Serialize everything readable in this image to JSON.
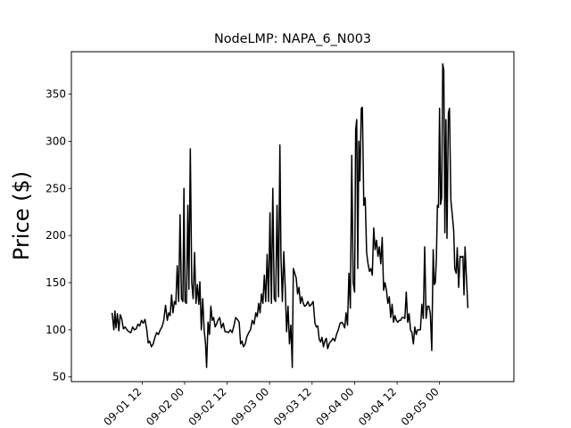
{
  "chart_data": {
    "type": "line",
    "title": "NodeLMP: NAPA_6_N003",
    "xlabel": "",
    "ylabel": "Price ($)",
    "x_unit": "hours since 09-01 00",
    "xlim": [
      -8.0,
      117.0
    ],
    "ylim": [
      45,
      395
    ],
    "x_ticks": [
      {
        "value": 12,
        "label": "09-01 12"
      },
      {
        "value": 24,
        "label": "09-02 00"
      },
      {
        "value": 36,
        "label": "09-02 12"
      },
      {
        "value": 48,
        "label": "09-03 00"
      },
      {
        "value": 60,
        "label": "09-03 12"
      },
      {
        "value": 72,
        "label": "09-04 00"
      },
      {
        "value": 84,
        "label": "09-04 12"
      },
      {
        "value": 96,
        "label": "09-05 00"
      }
    ],
    "y_ticks": [
      {
        "value": 50,
        "label": "50"
      },
      {
        "value": 100,
        "label": "100"
      },
      {
        "value": 150,
        "label": "150"
      },
      {
        "value": 200,
        "label": "200"
      },
      {
        "value": 250,
        "label": "250"
      },
      {
        "value": 300,
        "label": "300"
      },
      {
        "value": 350,
        "label": "350"
      }
    ],
    "grid": false,
    "legend": "none",
    "colors": {
      "line": "#000000",
      "axes": "#000000",
      "background": "#ffffff"
    },
    "series": [
      {
        "name": "",
        "points": [
          [
            3.5,
            118
          ],
          [
            4.0,
            100
          ],
          [
            4.3,
            120
          ],
          [
            4.6,
            102
          ],
          [
            5.0,
            117
          ],
          [
            5.4,
            99
          ],
          [
            5.8,
            116
          ],
          [
            6.2,
            112
          ],
          [
            6.7,
            101
          ],
          [
            7.2,
            103
          ],
          [
            7.7,
            100
          ],
          [
            8.2,
            98
          ],
          [
            8.8,
            97
          ],
          [
            9.3,
            103
          ],
          [
            9.8,
            100
          ],
          [
            10.3,
            101
          ],
          [
            10.8,
            106
          ],
          [
            11.3,
            104
          ],
          [
            11.8,
            110
          ],
          [
            12.3,
            107
          ],
          [
            12.8,
            111
          ],
          [
            13.3,
            100
          ],
          [
            13.7,
            86
          ],
          [
            14.1,
            88
          ],
          [
            14.6,
            82
          ],
          [
            15.1,
            85
          ],
          [
            15.6,
            92
          ],
          [
            16.1,
            97
          ],
          [
            16.6,
            95
          ],
          [
            17.1,
            100
          ],
          [
            17.6,
            103
          ],
          [
            18.1,
            110
          ],
          [
            18.6,
            126
          ],
          [
            19.1,
            110
          ],
          [
            19.5,
            118
          ],
          [
            19.9,
            115
          ],
          [
            20.3,
            137
          ],
          [
            20.7,
            118
          ],
          [
            21.1,
            130
          ],
          [
            21.5,
            127
          ],
          [
            21.9,
            168
          ],
          [
            22.3,
            130
          ],
          [
            22.7,
            222
          ],
          [
            23.1,
            133
          ],
          [
            23.5,
            130
          ],
          [
            23.8,
            250
          ],
          [
            24.1,
            130
          ],
          [
            24.5,
            128
          ],
          [
            24.9,
            232
          ],
          [
            25.2,
            143
          ],
          [
            25.6,
            292
          ],
          [
            26.0,
            150
          ],
          [
            26.4,
            133
          ],
          [
            26.8,
            182
          ],
          [
            27.2,
            128
          ],
          [
            27.6,
            148
          ],
          [
            28.0,
            127
          ],
          [
            28.3,
            151
          ],
          [
            28.7,
            100
          ],
          [
            29.1,
            133
          ],
          [
            29.5,
            100
          ],
          [
            29.9,
            85
          ],
          [
            30.2,
            60
          ],
          [
            30.6,
            108
          ],
          [
            31.0,
            95
          ],
          [
            31.4,
            125
          ],
          [
            31.8,
            110
          ],
          [
            32.2,
            113
          ],
          [
            32.6,
            103
          ],
          [
            33.0,
            106
          ],
          [
            33.4,
            110
          ],
          [
            33.9,
            113
          ],
          [
            34.4,
            102
          ],
          [
            34.9,
            107
          ],
          [
            35.4,
            98
          ],
          [
            35.9,
            98
          ],
          [
            36.4,
            97
          ],
          [
            36.9,
            100
          ],
          [
            37.4,
            97
          ],
          [
            37.9,
            104
          ],
          [
            38.4,
            113
          ],
          [
            38.9,
            111
          ],
          [
            39.4,
            108
          ],
          [
            39.8,
            85
          ],
          [
            40.2,
            88
          ],
          [
            40.6,
            82
          ],
          [
            41.1,
            85
          ],
          [
            41.6,
            93
          ],
          [
            42.1,
            97
          ],
          [
            42.6,
            100
          ],
          [
            43.1,
            110
          ],
          [
            43.6,
            106
          ],
          [
            44.1,
            118
          ],
          [
            44.5,
            114
          ],
          [
            44.9,
            128
          ],
          [
            45.3,
            118
          ],
          [
            45.7,
            138
          ],
          [
            46.1,
            128
          ],
          [
            46.5,
            158
          ],
          [
            46.9,
            130
          ],
          [
            47.3,
            180
          ],
          [
            47.7,
            130
          ],
          [
            48.1,
            224
          ],
          [
            48.5,
            128
          ],
          [
            48.9,
            250
          ],
          [
            49.3,
            133
          ],
          [
            49.7,
            130
          ],
          [
            50.1,
            232
          ],
          [
            50.5,
            135
          ],
          [
            50.9,
            296
          ],
          [
            51.2,
            178
          ],
          [
            51.6,
            130
          ],
          [
            52.0,
            183
          ],
          [
            52.4,
            145
          ],
          [
            52.8,
            98
          ],
          [
            53.2,
            125
          ],
          [
            53.6,
            85
          ],
          [
            54.0,
            105
          ],
          [
            54.4,
            60
          ],
          [
            54.7,
            165
          ],
          [
            55.1,
            160
          ],
          [
            55.5,
            155
          ],
          [
            55.9,
            138
          ],
          [
            56.3,
            145
          ],
          [
            56.7,
            128
          ],
          [
            57.1,
            135
          ],
          [
            57.5,
            128
          ],
          [
            57.9,
            125
          ],
          [
            58.3,
            126
          ],
          [
            58.8,
            130
          ],
          [
            59.3,
            125
          ],
          [
            59.8,
            127
          ],
          [
            60.3,
            130
          ],
          [
            60.8,
            107
          ],
          [
            61.2,
            103
          ],
          [
            61.6,
            104
          ],
          [
            62.0,
            90
          ],
          [
            62.4,
            87
          ],
          [
            62.8,
            92
          ],
          [
            63.2,
            82
          ],
          [
            63.6,
            88
          ],
          [
            64.0,
            91
          ],
          [
            64.4,
            80
          ],
          [
            64.9,
            86
          ],
          [
            65.4,
            88
          ],
          [
            65.9,
            91
          ],
          [
            66.4,
            88
          ],
          [
            66.9,
            95
          ],
          [
            67.4,
            100
          ],
          [
            67.9,
            107
          ],
          [
            68.4,
            108
          ],
          [
            68.8,
            106
          ],
          [
            69.2,
            102
          ],
          [
            69.6,
            118
          ],
          [
            70.0,
            105
          ],
          [
            70.4,
            160
          ],
          [
            70.8,
            123
          ],
          [
            71.2,
            285
          ],
          [
            71.6,
            150
          ],
          [
            72.0,
            140
          ],
          [
            72.3,
            312
          ],
          [
            72.6,
            323
          ],
          [
            72.9,
            165
          ],
          [
            73.2,
            300
          ],
          [
            73.5,
            258
          ],
          [
            73.9,
            335
          ],
          [
            74.2,
            336
          ],
          [
            74.6,
            232
          ],
          [
            75.0,
            240
          ],
          [
            75.4,
            182
          ],
          [
            75.8,
            170
          ],
          [
            76.2,
            162
          ],
          [
            76.6,
            165
          ],
          [
            77.0,
            158
          ],
          [
            77.4,
            208
          ],
          [
            77.8,
            185
          ],
          [
            78.2,
            195
          ],
          [
            78.6,
            178
          ],
          [
            79.0,
            188
          ],
          [
            79.4,
            170
          ],
          [
            79.8,
            198
          ],
          [
            80.2,
            142
          ],
          [
            80.6,
            150
          ],
          [
            81.0,
            142
          ],
          [
            81.4,
            128
          ],
          [
            81.8,
            135
          ],
          [
            82.2,
            113
          ],
          [
            82.6,
            127
          ],
          [
            83.0,
            108
          ],
          [
            83.4,
            115
          ],
          [
            83.8,
            110
          ],
          [
            84.2,
            108
          ],
          [
            84.6,
            110
          ],
          [
            85.0,
            110
          ],
          [
            85.4,
            113
          ],
          [
            85.8,
            113
          ],
          [
            86.2,
            112
          ],
          [
            86.6,
            140
          ],
          [
            87.0,
            108
          ],
          [
            87.4,
            117
          ],
          [
            87.8,
            100
          ],
          [
            88.2,
            97
          ],
          [
            88.6,
            85
          ],
          [
            89.0,
            103
          ],
          [
            89.4,
            95
          ],
          [
            89.8,
            100
          ],
          [
            90.2,
            100
          ],
          [
            90.6,
            100
          ],
          [
            91.0,
            127
          ],
          [
            91.4,
            112
          ],
          [
            91.8,
            188
          ],
          [
            92.2,
            112
          ],
          [
            92.6,
            125
          ],
          [
            93.0,
            125
          ],
          [
            93.4,
            117
          ],
          [
            93.8,
            78
          ],
          [
            94.2,
            185
          ],
          [
            94.5,
            148
          ],
          [
            94.8,
            150
          ],
          [
            95.1,
            175
          ],
          [
            95.4,
            232
          ],
          [
            95.7,
            230
          ],
          [
            96.0,
            335
          ],
          [
            96.3,
            233
          ],
          [
            96.6,
            240
          ],
          [
            96.9,
            382
          ],
          [
            97.2,
            375
          ],
          [
            97.5,
            203
          ],
          [
            97.8,
            323
          ],
          [
            98.1,
            197
          ],
          [
            98.5,
            330
          ],
          [
            98.8,
            335
          ],
          [
            99.2,
            237
          ],
          [
            99.6,
            222
          ],
          [
            100.0,
            205
          ],
          [
            100.3,
            165
          ],
          [
            100.7,
            160
          ],
          [
            101.0,
            187
          ],
          [
            101.4,
            145
          ],
          [
            101.8,
            178
          ],
          [
            102.2,
            177
          ],
          [
            102.6,
            178
          ],
          [
            102.9,
            137
          ],
          [
            103.2,
            188
          ],
          [
            103.6,
            155
          ],
          [
            104.0,
            123
          ]
        ]
      }
    ]
  }
}
